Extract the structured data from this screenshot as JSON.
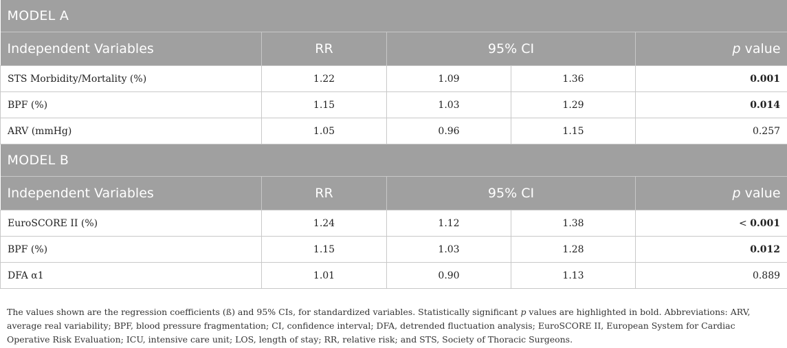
{
  "model_a": {
    "title": "MODEL A",
    "headers": {
      "variables": "Independent Variables",
      "rr": "RR",
      "ci": "95% CI",
      "p_italic": "p",
      "p_rest": " value"
    },
    "rows": [
      {
        "variable": "STS Morbidity/Mortality (%)",
        "rr": "1.22",
        "ci_low": "1.09",
        "ci_high": "1.36",
        "p": "0.001",
        "p_bold": true
      },
      {
        "variable": "BPF (%)",
        "rr": "1.15",
        "ci_low": "1.03",
        "ci_high": "1.29",
        "p": "0.014",
        "p_bold": true
      },
      {
        "variable": "ARV (mmHg)",
        "rr": "1.05",
        "ci_low": "0.96",
        "ci_high": "1.15",
        "p": "0.257",
        "p_bold": false
      }
    ]
  },
  "model_b": {
    "title": "MODEL B",
    "headers": {
      "variables": "Independent Variables",
      "rr": "RR",
      "ci": "95% CI",
      "p_italic": "p",
      "p_rest": " value"
    },
    "rows": [
      {
        "variable": "EuroSCORE II (%)",
        "rr": "1.24",
        "ci_low": "1.12",
        "ci_high": "1.38",
        "p_prefix": "< ",
        "p": "0.001",
        "p_bold": true
      },
      {
        "variable": "BPF (%)",
        "rr": "1.15",
        "ci_low": "1.03",
        "ci_high": "1.28",
        "p": "0.012",
        "p_bold": true
      },
      {
        "variable": "DFA α1",
        "rr": "1.01",
        "ci_low": "0.90",
        "ci_high": "1.13",
        "p": "0.889",
        "p_bold": false
      }
    ]
  },
  "footnote": {
    "part1": "The values shown are the regression coefficients (ß) and 95% CIs, for standardized variables. Statistically significant ",
    "p_italic": "p",
    "part2": " values are highlighted in bold. Abbreviations: ARV, average real variability; BPF, blood pressure fragmentation; CI, confidence interval; DFA, detrended fluctuation analysis; EuroSCORE II, European System for Cardiac Operative Risk Evaluation; ICU, intensive care unit; LOS, length of stay; RR, relative risk; and STS, Society of Thoracic Surgeons."
  }
}
